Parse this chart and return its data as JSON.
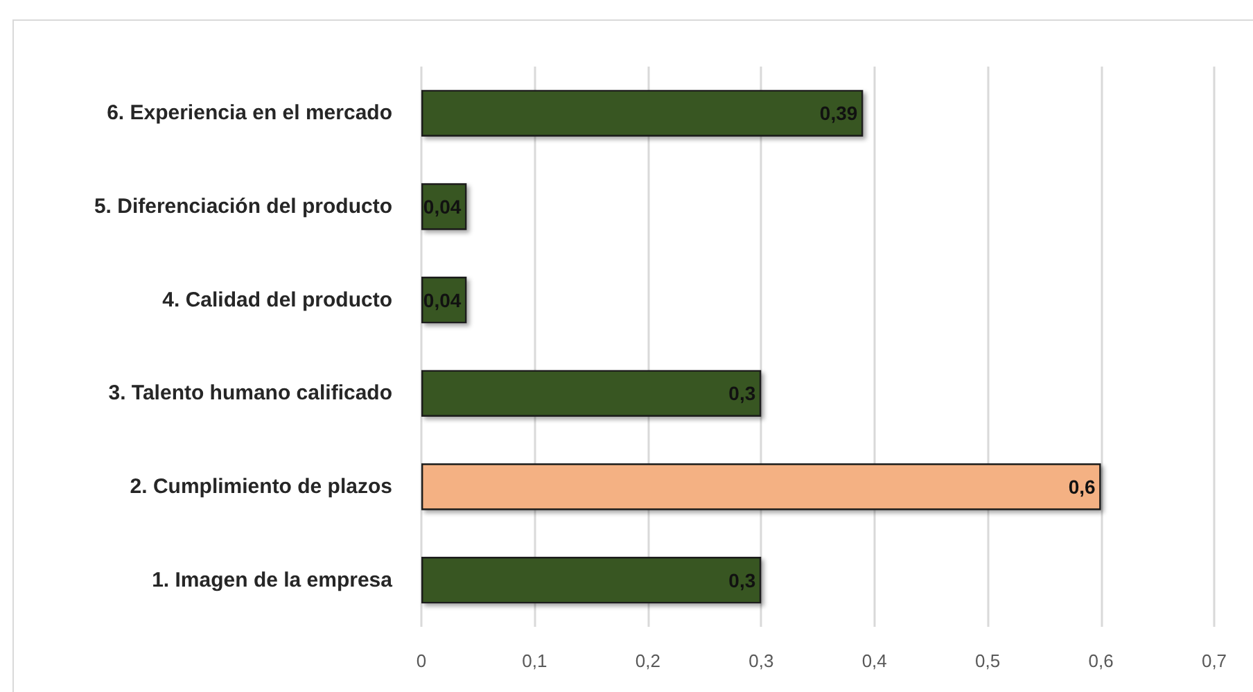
{
  "chart_data": {
    "type": "bar",
    "orientation": "horizontal",
    "categories": [
      "6. Experiencia en el mercado",
      "5. Diferenciación del producto",
      "4. Calidad del producto",
      "3. Talento humano calificado",
      "2. Cumplimiento de plazos",
      "1. Imagen de la empresa"
    ],
    "values": [
      0.39,
      0.04,
      0.04,
      0.3,
      0.6,
      0.3
    ],
    "colors": [
      "#375623",
      "#375623",
      "#375623",
      "#375623",
      "#f4b183",
      "#375623"
    ],
    "value_labels": [
      "0,39",
      "0,04",
      "0,04",
      "0,3",
      "0,6",
      "0,3"
    ],
    "xlim": [
      0,
      0.7
    ],
    "xticks": [
      0,
      {
        "value": 0.1,
        "label": "0,1"
      },
      {
        "value": 0.2,
        "label": "0,2"
      },
      {
        "value": 0.3,
        "label": "0,3"
      },
      {
        "value": 0.4,
        "label": "0,4"
      },
      {
        "value": 0.5,
        "label": "0,5"
      },
      {
        "value": 0.6,
        "label": "0,6"
      },
      {
        "value": 0.7,
        "label": "0,7"
      }
    ],
    "grid": "x"
  }
}
